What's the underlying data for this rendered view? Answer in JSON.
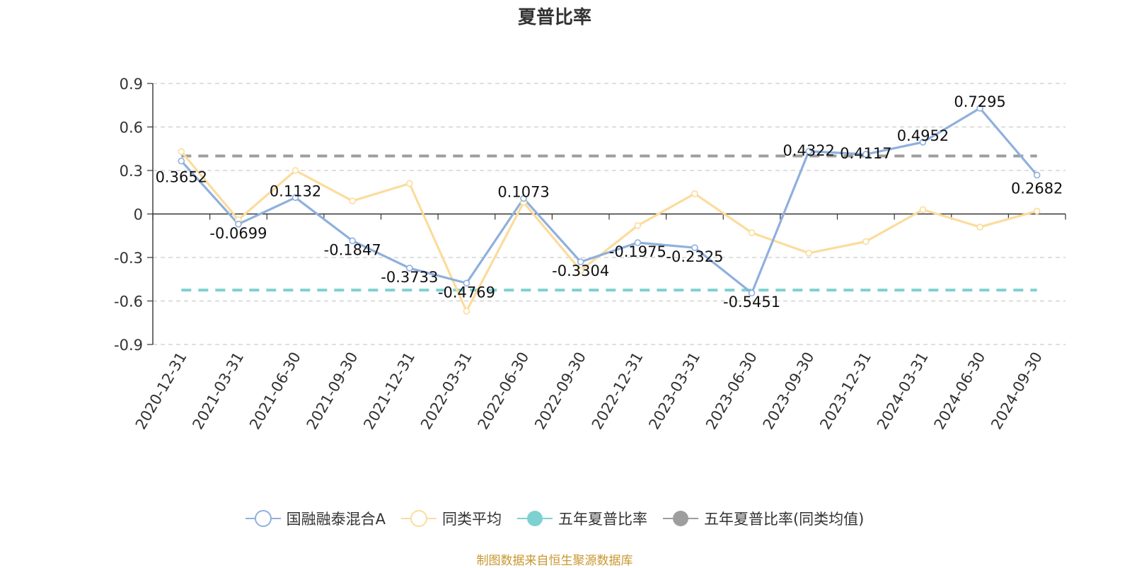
{
  "chart_data": {
    "type": "line",
    "title": "夏普比率",
    "xlabel": "",
    "ylabel": "",
    "ylim": [
      -0.9,
      0.9
    ],
    "yticks": [
      "0.9",
      "0.6",
      "0.3",
      "0",
      "-0.3",
      "-0.6",
      "-0.9"
    ],
    "grid": true,
    "legend_position": "bottom",
    "categories": [
      "2020-12-31",
      "2021-03-31",
      "2021-06-30",
      "2021-09-30",
      "2021-12-31",
      "2022-03-31",
      "2022-06-30",
      "2022-09-30",
      "2022-12-31",
      "2023-03-31",
      "2023-06-30",
      "2023-09-30",
      "2023-12-31",
      "2024-03-31",
      "2024-06-30",
      "2024-09-30"
    ],
    "series": [
      {
        "name": "国融融泰混合A",
        "color": "#8fb0dc",
        "values": [
          0.3652,
          -0.0699,
          0.1132,
          -0.1847,
          -0.3733,
          -0.4769,
          0.1073,
          -0.3304,
          -0.1975,
          -0.2325,
          -0.5451,
          0.4322,
          0.4117,
          0.4952,
          0.7295,
          0.2682
        ],
        "labels": [
          "0.3652",
          "-0.0699",
          "0.1132",
          "-0.1847",
          "-0.3733",
          "-0.4769",
          "0.1073",
          "-0.3304",
          "-0.1975",
          "-0.2325",
          "-0.5451",
          "0.4322",
          "0.4117",
          "0.4952",
          "0.7295",
          "0.2682"
        ]
      },
      {
        "name": "同类平均",
        "color": "#fbdc9c",
        "values": [
          0.43,
          -0.04,
          0.3,
          0.09,
          0.21,
          -0.67,
          0.08,
          -0.39,
          -0.08,
          0.14,
          -0.13,
          -0.27,
          -0.19,
          0.03,
          -0.09,
          0.02
        ]
      },
      {
        "name": "五年夏普比率",
        "color": "#7fd1d1",
        "constant": -0.525
      },
      {
        "name": "五年夏普比率(同类均值)",
        "color": "#9e9e9e",
        "constant": 0.4
      }
    ]
  },
  "source_note": "制图数据来自恒生聚源数据库"
}
